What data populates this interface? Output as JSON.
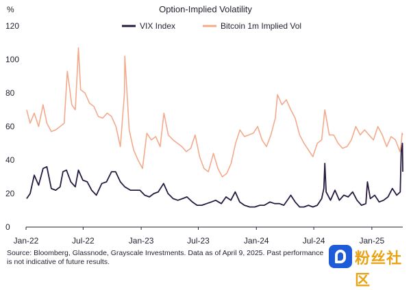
{
  "chart_data": {
    "type": "line",
    "title": "Option-Implied Volatility",
    "ylabel": "%",
    "ylim": [
      0,
      120
    ],
    "yticks": [
      0,
      20,
      40,
      60,
      80,
      100,
      120
    ],
    "xlim": [
      "2022-01-01",
      "2025-04-09"
    ],
    "xtick_labels": [
      "Jan-22",
      "Jul-22",
      "Jan-23",
      "Jul-23",
      "Jan-24",
      "Jul-24",
      "Jan-25"
    ],
    "xtick_dates": [
      "2022-01-01",
      "2022-07-01",
      "2023-01-01",
      "2023-07-01",
      "2024-01-01",
      "2024-07-01",
      "2025-01-01"
    ],
    "grid": false,
    "legend_position": "top",
    "series": [
      {
        "name": "VIX Index",
        "color": "#25193f",
        "points": [
          [
            "2022-01-03",
            17
          ],
          [
            "2022-01-14",
            20
          ],
          [
            "2022-01-27",
            31
          ],
          [
            "2022-02-10",
            25
          ],
          [
            "2022-02-24",
            35
          ],
          [
            "2022-03-08",
            36
          ],
          [
            "2022-03-22",
            23
          ],
          [
            "2022-04-05",
            22
          ],
          [
            "2022-04-19",
            24
          ],
          [
            "2022-04-28",
            33
          ],
          [
            "2022-05-09",
            34
          ],
          [
            "2022-05-23",
            27
          ],
          [
            "2022-06-06",
            24
          ],
          [
            "2022-06-16",
            34
          ],
          [
            "2022-06-30",
            28
          ],
          [
            "2022-07-14",
            27
          ],
          [
            "2022-07-28",
            22
          ],
          [
            "2022-08-12",
            19
          ],
          [
            "2022-08-29",
            26
          ],
          [
            "2022-09-13",
            27
          ],
          [
            "2022-09-29",
            33
          ],
          [
            "2022-10-12",
            33
          ],
          [
            "2022-10-27",
            27
          ],
          [
            "2022-11-10",
            24
          ],
          [
            "2022-11-28",
            22
          ],
          [
            "2022-12-12",
            22
          ],
          [
            "2022-12-28",
            22
          ],
          [
            "2023-01-12",
            19
          ],
          [
            "2023-01-27",
            18
          ],
          [
            "2023-02-10",
            20
          ],
          [
            "2023-02-24",
            21
          ],
          [
            "2023-03-13",
            26
          ],
          [
            "2023-03-27",
            20
          ],
          [
            "2023-04-12",
            17
          ],
          [
            "2023-04-27",
            16
          ],
          [
            "2023-05-12",
            17
          ],
          [
            "2023-05-26",
            18
          ],
          [
            "2023-06-12",
            15
          ],
          [
            "2023-06-27",
            13
          ],
          [
            "2023-07-12",
            13
          ],
          [
            "2023-07-27",
            14
          ],
          [
            "2023-08-11",
            15
          ],
          [
            "2023-08-25",
            16
          ],
          [
            "2023-09-12",
            14
          ],
          [
            "2023-09-27",
            18
          ],
          [
            "2023-10-12",
            16
          ],
          [
            "2023-10-26",
            21
          ],
          [
            "2023-11-09",
            15
          ],
          [
            "2023-11-24",
            13
          ],
          [
            "2023-12-11",
            12
          ],
          [
            "2023-12-27",
            12
          ],
          [
            "2024-01-12",
            13
          ],
          [
            "2024-01-26",
            13
          ],
          [
            "2024-02-13",
            15
          ],
          [
            "2024-02-28",
            14
          ],
          [
            "2024-03-14",
            14
          ],
          [
            "2024-03-28",
            13
          ],
          [
            "2024-04-12",
            17
          ],
          [
            "2024-04-19",
            19
          ],
          [
            "2024-05-03",
            15
          ],
          [
            "2024-05-17",
            12
          ],
          [
            "2024-05-31",
            12
          ],
          [
            "2024-06-14",
            13
          ],
          [
            "2024-06-28",
            12
          ],
          [
            "2024-07-12",
            13
          ],
          [
            "2024-07-26",
            17
          ],
          [
            "2024-08-02",
            23
          ],
          [
            "2024-08-05",
            38
          ],
          [
            "2024-08-09",
            21
          ],
          [
            "2024-08-23",
            16
          ],
          [
            "2024-09-06",
            22
          ],
          [
            "2024-09-20",
            16
          ],
          [
            "2024-10-04",
            19
          ],
          [
            "2024-10-18",
            18
          ],
          [
            "2024-11-01",
            21
          ],
          [
            "2024-11-15",
            16
          ],
          [
            "2024-11-29",
            13
          ],
          [
            "2024-12-13",
            14
          ],
          [
            "2024-12-18",
            27
          ],
          [
            "2024-12-27",
            17
          ],
          [
            "2025-01-10",
            19
          ],
          [
            "2025-01-24",
            15
          ],
          [
            "2025-02-07",
            16
          ],
          [
            "2025-02-21",
            18
          ],
          [
            "2025-03-07",
            23
          ],
          [
            "2025-03-21",
            19
          ],
          [
            "2025-04-01",
            21
          ],
          [
            "2025-04-04",
            45
          ],
          [
            "2025-04-08",
            50
          ],
          [
            "2025-04-09",
            33
          ]
        ]
      },
      {
        "name": "Bitcoin 1m Implied Vol",
        "color": "#f4a98b",
        "points": [
          [
            "2022-01-03",
            70
          ],
          [
            "2022-01-14",
            62
          ],
          [
            "2022-01-27",
            68
          ],
          [
            "2022-02-10",
            60
          ],
          [
            "2022-02-24",
            73
          ],
          [
            "2022-03-08",
            62
          ],
          [
            "2022-03-22",
            57
          ],
          [
            "2022-04-05",
            58
          ],
          [
            "2022-04-19",
            60
          ],
          [
            "2022-05-02",
            62
          ],
          [
            "2022-05-12",
            93
          ],
          [
            "2022-05-26",
            73
          ],
          [
            "2022-06-06",
            70
          ],
          [
            "2022-06-13",
            95
          ],
          [
            "2022-06-16",
            107
          ],
          [
            "2022-06-23",
            82
          ],
          [
            "2022-07-07",
            80
          ],
          [
            "2022-07-21",
            74
          ],
          [
            "2022-08-04",
            72
          ],
          [
            "2022-08-18",
            66
          ],
          [
            "2022-09-01",
            65
          ],
          [
            "2022-09-15",
            68
          ],
          [
            "2022-09-29",
            66
          ],
          [
            "2022-10-13",
            60
          ],
          [
            "2022-10-27",
            48
          ],
          [
            "2022-11-09",
            80
          ],
          [
            "2022-11-10",
            102
          ],
          [
            "2022-11-14",
            90
          ],
          [
            "2022-11-24",
            58
          ],
          [
            "2022-12-08",
            46
          ],
          [
            "2022-12-22",
            40
          ],
          [
            "2023-01-05",
            35
          ],
          [
            "2023-01-19",
            56
          ],
          [
            "2023-02-02",
            52
          ],
          [
            "2023-02-16",
            54
          ],
          [
            "2023-03-02",
            48
          ],
          [
            "2023-03-14",
            68
          ],
          [
            "2023-03-28",
            55
          ],
          [
            "2023-04-12",
            52
          ],
          [
            "2023-04-26",
            50
          ],
          [
            "2023-05-10",
            48
          ],
          [
            "2023-05-24",
            45
          ],
          [
            "2023-06-07",
            47
          ],
          [
            "2023-06-21",
            55
          ],
          [
            "2023-07-05",
            42
          ],
          [
            "2023-07-19",
            35
          ],
          [
            "2023-08-02",
            33
          ],
          [
            "2023-08-18",
            44
          ],
          [
            "2023-09-01",
            35
          ],
          [
            "2023-09-15",
            30
          ],
          [
            "2023-09-29",
            32
          ],
          [
            "2023-10-13",
            38
          ],
          [
            "2023-10-27",
            50
          ],
          [
            "2023-11-10",
            58
          ],
          [
            "2023-11-24",
            54
          ],
          [
            "2023-12-08",
            55
          ],
          [
            "2023-12-22",
            56
          ],
          [
            "2024-01-05",
            60
          ],
          [
            "2024-01-19",
            52
          ],
          [
            "2024-02-02",
            48
          ],
          [
            "2024-02-16",
            55
          ],
          [
            "2024-03-01",
            65
          ],
          [
            "2024-03-08",
            79
          ],
          [
            "2024-03-22",
            73
          ],
          [
            "2024-04-05",
            76
          ],
          [
            "2024-04-19",
            70
          ],
          [
            "2024-05-03",
            65
          ],
          [
            "2024-05-17",
            55
          ],
          [
            "2024-05-31",
            50
          ],
          [
            "2024-06-14",
            46
          ],
          [
            "2024-06-28",
            42
          ],
          [
            "2024-07-12",
            50
          ],
          [
            "2024-07-26",
            52
          ],
          [
            "2024-08-05",
            70
          ],
          [
            "2024-08-19",
            55
          ],
          [
            "2024-09-02",
            55
          ],
          [
            "2024-09-16",
            50
          ],
          [
            "2024-09-30",
            47
          ],
          [
            "2024-10-14",
            48
          ],
          [
            "2024-10-28",
            52
          ],
          [
            "2024-11-11",
            60
          ],
          [
            "2024-11-25",
            55
          ],
          [
            "2024-12-09",
            58
          ],
          [
            "2024-12-23",
            55
          ],
          [
            "2025-01-06",
            52
          ],
          [
            "2025-01-20",
            60
          ],
          [
            "2025-02-03",
            55
          ],
          [
            "2025-02-17",
            48
          ],
          [
            "2025-03-03",
            54
          ],
          [
            "2025-03-17",
            52
          ],
          [
            "2025-03-31",
            45
          ],
          [
            "2025-04-04",
            50
          ],
          [
            "2025-04-07",
            56
          ],
          [
            "2025-04-09",
            55
          ]
        ]
      }
    ]
  },
  "source_note": "Source: Bloomberg, Glassnode, Grayscale Investments. Data as of April 9, 2025. Past performance is not indicative of future results.",
  "watermark": {
    "text": "粉丝社区",
    "logo_color": "#1e5bd8",
    "text_color": "#e8a317"
  }
}
